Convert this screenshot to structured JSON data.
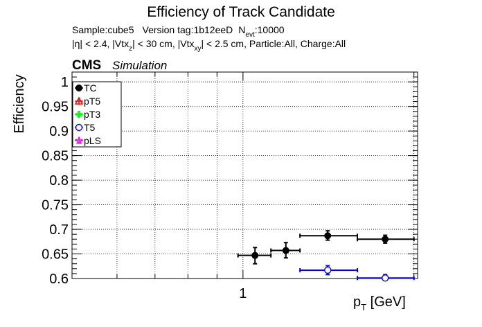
{
  "chart_data": {
    "type": "scatter",
    "title": "Efficiency of Track Candidate",
    "subtitle_line1": {
      "sample": "Sample:cube5",
      "version": "Version tag:1b12eeD",
      "n_label": "N",
      "n_sub": "evt",
      "n_value": ":10000"
    },
    "subtitle_line2": {
      "p1": "|η| < 2.4, |Vtx",
      "s1": "z",
      "p2": "| < 30 cm, |Vtx",
      "s2": "xy",
      "p3": "| < 2.5 cm, Particle:All, Charge:All"
    },
    "cms_label": "CMS",
    "simulation_label": "Simulation",
    "ylabel": "Efficiency",
    "xlabel_main": "p",
    "xlabel_sub": "T",
    "xlabel_unit": " [GeV]",
    "x_scale": "log",
    "xlim": [
      0.5,
      2.03
    ],
    "ylim": [
      0.6,
      1.02
    ],
    "grid": true,
    "legend_position": "top-left",
    "yticks": [
      {
        "value": 0.6,
        "label": "0.6"
      },
      {
        "value": 0.65,
        "label": "0.65"
      },
      {
        "value": 0.7,
        "label": "0.7"
      },
      {
        "value": 0.75,
        "label": "0.75"
      },
      {
        "value": 0.8,
        "label": "0.8"
      },
      {
        "value": 0.85,
        "label": "0.85"
      },
      {
        "value": 0.9,
        "label": "0.9"
      },
      {
        "value": 0.95,
        "label": "0.95"
      },
      {
        "value": 1.0,
        "label": "1"
      }
    ],
    "xticks": [
      {
        "value": 1.0,
        "label": "1"
      }
    ],
    "series": [
      {
        "name": "TC",
        "color": "#000000",
        "marker": "filled-circle",
        "points": [
          {
            "x": 1.05,
            "xlo": 0.98,
            "xhi": 1.12,
            "y": 0.647,
            "ylo": 0.63,
            "yhi": 0.663
          },
          {
            "x": 1.19,
            "xlo": 1.12,
            "xhi": 1.26,
            "y": 0.657,
            "ylo": 0.642,
            "yhi": 0.673
          },
          {
            "x": 1.41,
            "xlo": 1.26,
            "xhi": 1.59,
            "y": 0.687,
            "ylo": 0.678,
            "yhi": 0.697
          },
          {
            "x": 1.78,
            "xlo": 1.59,
            "xhi": 2.0,
            "y": 0.68,
            "ylo": 0.672,
            "yhi": 0.688
          }
        ]
      },
      {
        "name": "pT5",
        "color": "#ff0000",
        "marker": "open-triangle",
        "points": []
      },
      {
        "name": "pT3",
        "color": "#00ff00",
        "marker": "filled-cross",
        "points": []
      },
      {
        "name": "T5",
        "color": "#0000ff",
        "marker": "open-circle",
        "points": [
          {
            "x": 1.41,
            "xlo": 1.26,
            "xhi": 1.59,
            "y": 0.617,
            "ylo": 0.608,
            "yhi": 0.626
          },
          {
            "x": 1.78,
            "xlo": 1.59,
            "xhi": 2.0,
            "y": 0.601,
            "ylo": 0.596,
            "yhi": 0.608
          }
        ]
      },
      {
        "name": "pLS",
        "color": "#ff00ff",
        "marker": "open-star",
        "points": []
      }
    ]
  }
}
